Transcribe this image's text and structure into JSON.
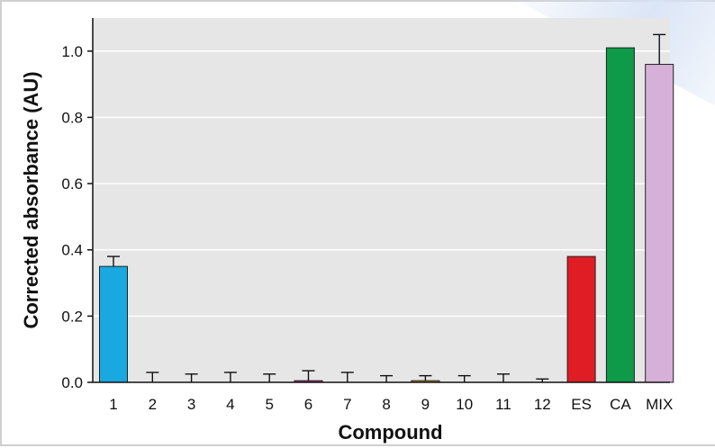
{
  "chart_data": {
    "type": "bar",
    "title": "",
    "xlabel": "Compound",
    "ylabel": "Corrected absorbance (AU)",
    "ylim": [
      0,
      1.1
    ],
    "yticks": [
      "0.0",
      "0.2",
      "0.4",
      "0.6",
      "0.8",
      "1.0"
    ],
    "grid": true,
    "legend": "none",
    "categories": [
      "1",
      "2",
      "3",
      "4",
      "5",
      "6",
      "7",
      "8",
      "9",
      "10",
      "11",
      "12",
      "ES",
      "CA",
      "MIX"
    ],
    "values": [
      0.35,
      0.0,
      0.0,
      0.0,
      0.0,
      0.005,
      0.0,
      0.0,
      0.005,
      0.0,
      0.0,
      0.0,
      0.38,
      1.01,
      0.96
    ],
    "errors": [
      0.03,
      0.03,
      0.025,
      0.03,
      0.025,
      0.03,
      0.03,
      0.02,
      0.015,
      0.02,
      0.025,
      0.01,
      0.0,
      0.0,
      0.09
    ],
    "colors": [
      "#1aa8e0",
      "#555555",
      "#555555",
      "#555555",
      "#555555",
      "#d6338a",
      "#555555",
      "#555555",
      "#d4a020",
      "#555555",
      "#555555",
      "#555555",
      "#e01c24",
      "#0e9a48",
      "#d6b0d8"
    ],
    "plot_background": "#e6e6e6"
  }
}
